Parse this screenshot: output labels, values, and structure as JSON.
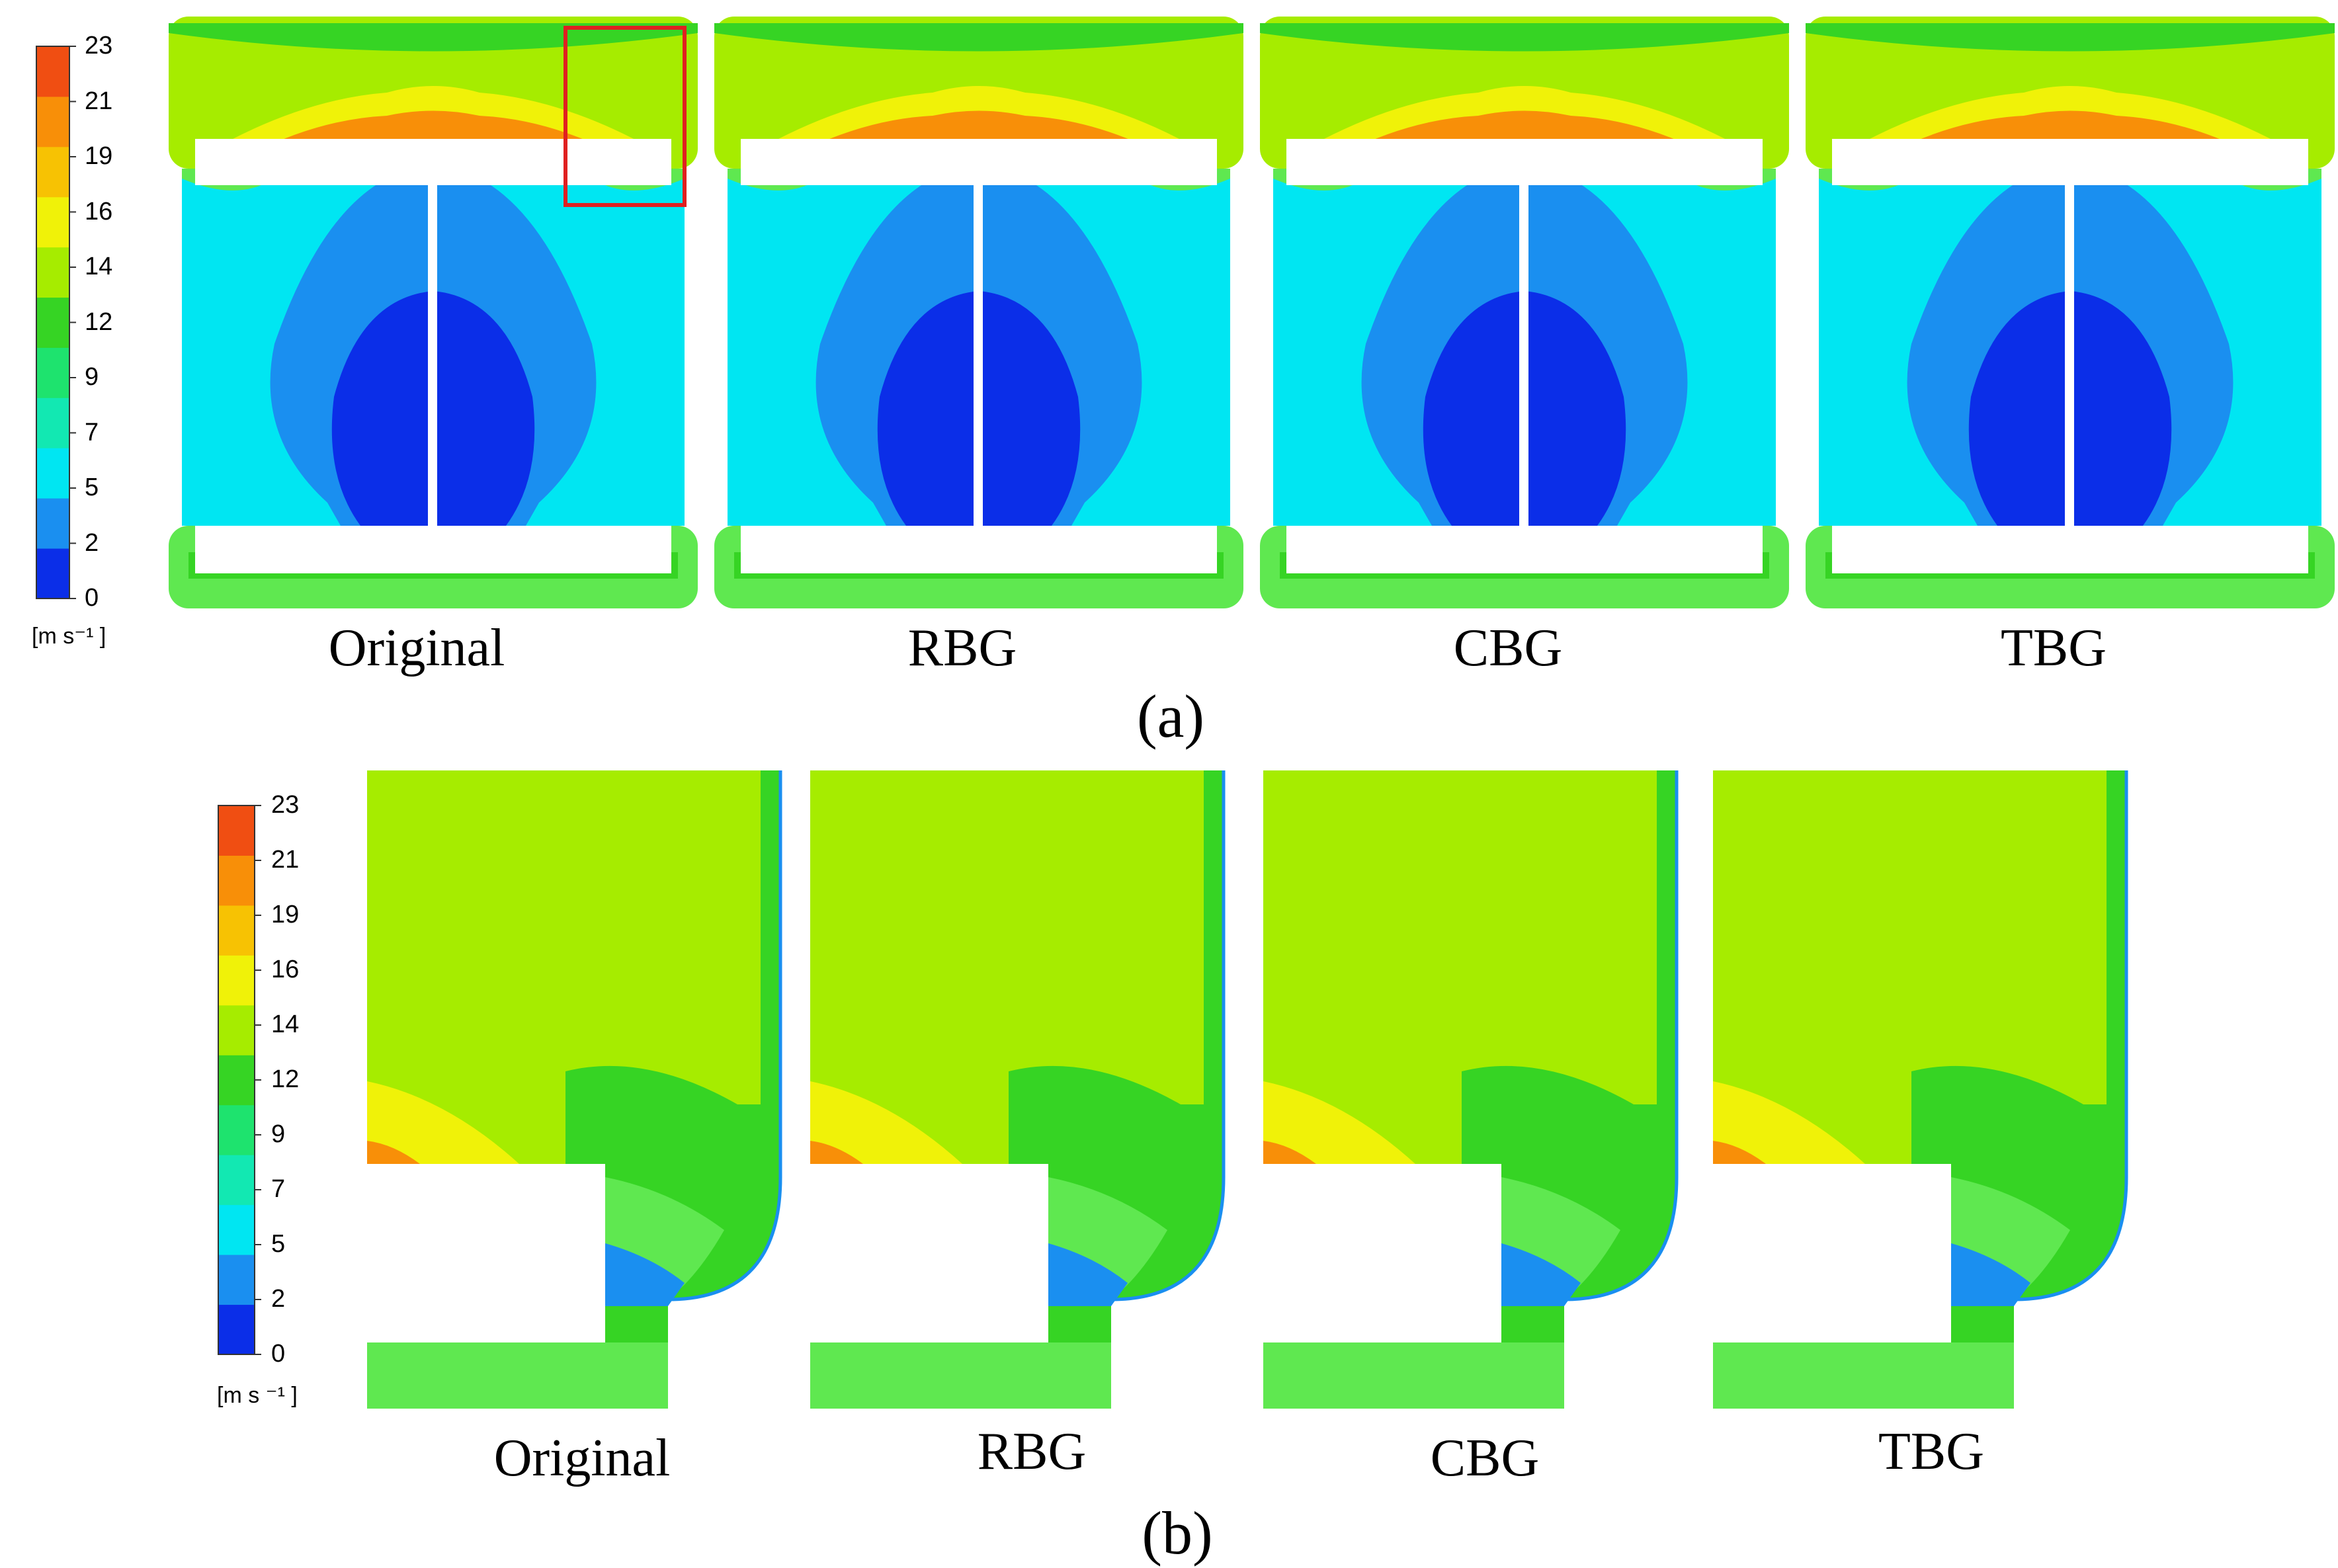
{
  "colorbar": {
    "ticks": [
      "0",
      "2",
      "5",
      "7",
      "9",
      "12",
      "14",
      "16",
      "19",
      "21",
      "23"
    ],
    "unit": "[m s⁻¹ ]",
    "unit_b": "[m s ⁻¹ ]",
    "colors": [
      "#0b2ee8",
      "#1a8ff0",
      "#00e6f2",
      "#12e8b2",
      "#1ee36e",
      "#36d424",
      "#a6ec00",
      "#f0f208",
      "#f7c203",
      "#f88f08",
      "#f04e12"
    ]
  },
  "fluid_colors": {
    "core_dark_blue": "#0b2ee8",
    "mid_blue": "#1a8ff0",
    "cyan": "#00e6f2",
    "green": "#36d424",
    "light_green": "#5fe850",
    "yellow_green": "#a6ec00",
    "yellow": "#f0f208",
    "orange": "#f88f08",
    "highlight_box": "#e02020"
  },
  "panel_a": {
    "label": "(a)",
    "cases": [
      "Original",
      "RBG",
      "CBG",
      "TBG"
    ]
  },
  "panel_b": {
    "label": "(b)",
    "cases": [
      "Original",
      "RBG",
      "CBG",
      "TBG"
    ]
  }
}
